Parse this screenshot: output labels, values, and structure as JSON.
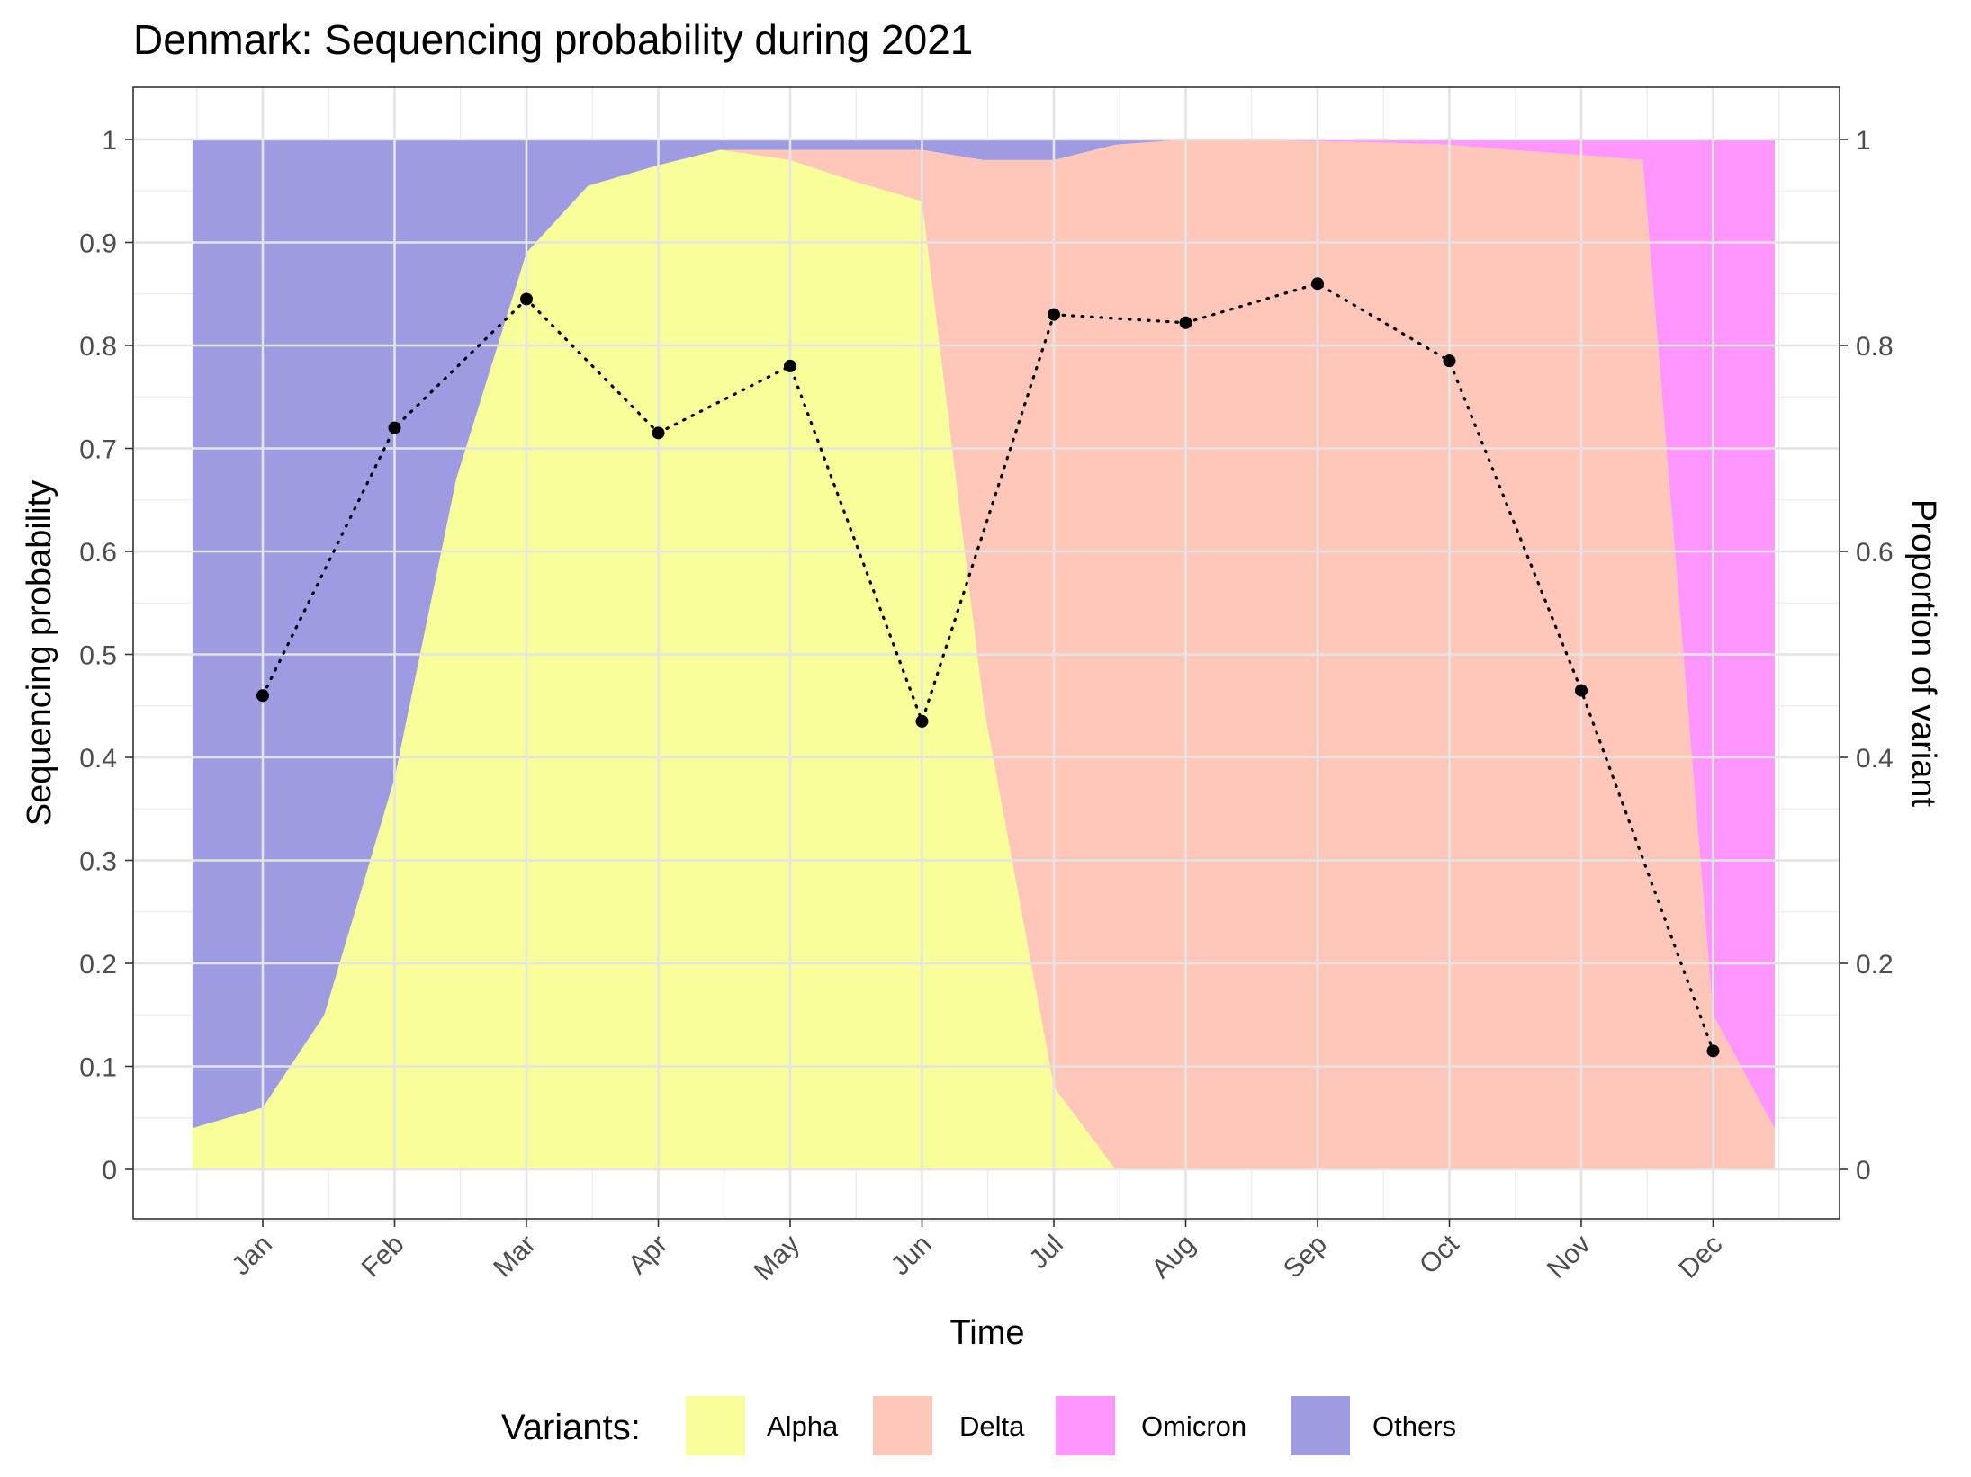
{
  "chart_data": {
    "type": "area",
    "title": "Denmark: Sequencing probability during 2021",
    "xlabel": "Time",
    "ylabel": "Sequencing probability",
    "y2label": "Proportion of variant",
    "x_ticks": [
      "Jan",
      "Feb",
      "Mar",
      "Apr",
      "May",
      "Jun",
      "Jul",
      "Aug",
      "Sep",
      "Oct",
      "Nov",
      "Dec"
    ],
    "y_ticks": [
      "0",
      "0.1",
      "0.2",
      "0.3",
      "0.4",
      "0.5",
      "0.6",
      "0.7",
      "0.8",
      "0.9",
      "1"
    ],
    "y2_ticks": [
      "0",
      "0.2",
      "0.4",
      "0.6",
      "0.8",
      "1"
    ],
    "ylim": [
      -0.05,
      1.05
    ],
    "grid": true,
    "legend_position": "bottom",
    "legend_title": "Variants:",
    "stack_order_bottom_to_top": [
      "Alpha",
      "Delta",
      "Omicron",
      "Others"
    ],
    "variant_months": [
      "2020-12-15",
      "2021-01-01",
      "2021-01-15",
      "2021-02-01",
      "2021-02-15",
      "2021-03-01",
      "2021-03-15",
      "2021-04-01",
      "2021-04-15",
      "2021-05-01",
      "2021-05-15",
      "2021-06-01",
      "2021-06-15",
      "2021-07-01",
      "2021-07-15",
      "2021-08-01",
      "2021-08-15",
      "2021-09-01",
      "2021-09-15",
      "2021-10-01",
      "2021-10-15",
      "2021-11-01",
      "2021-11-15",
      "2021-12-01",
      "2021-12-15"
    ],
    "variants": [
      {
        "name": "Alpha",
        "color": "#F8FF9A",
        "values": [
          0.04,
          0.06,
          0.15,
          0.38,
          0.67,
          0.89,
          0.955,
          0.975,
          0.99,
          0.98,
          0.96,
          0.94,
          0.45,
          0.08,
          0.0,
          0.0,
          0.0,
          0.0,
          0.0,
          0.0,
          0.0,
          0.0,
          0.0,
          0.0,
          0.0
        ]
      },
      {
        "name": "Delta",
        "color": "#FFC6BA",
        "values": [
          0.0,
          0.0,
          0.0,
          0.0,
          0.0,
          0.0,
          0.0,
          0.0,
          0.0,
          0.01,
          0.03,
          0.05,
          0.53,
          0.9,
          0.995,
          1.0,
          1.0,
          0.998,
          0.997,
          0.995,
          0.99,
          0.985,
          0.98,
          0.15,
          0.04
        ]
      },
      {
        "name": "Omicron",
        "color": "#FF96FF",
        "values": [
          0.0,
          0.0,
          0.0,
          0.0,
          0.0,
          0.0,
          0.0,
          0.0,
          0.0,
          0.0,
          0.0,
          0.0,
          0.0,
          0.0,
          0.0,
          0.0,
          0.0,
          0.002,
          0.003,
          0.005,
          0.01,
          0.015,
          0.02,
          0.85,
          0.96
        ]
      },
      {
        "name": "Others",
        "color": "#9D9BE1",
        "values": [
          0.96,
          0.94,
          0.85,
          0.62,
          0.33,
          0.11,
          0.045,
          0.025,
          0.01,
          0.01,
          0.01,
          0.01,
          0.02,
          0.02,
          0.005,
          0.0,
          0.0,
          0.0,
          0.0,
          0.0,
          0.0,
          0.0,
          0.0,
          0.0,
          0.0
        ]
      }
    ],
    "sequencing_points": [
      {
        "x": "Jan",
        "y": 0.46
      },
      {
        "x": "Feb",
        "y": 0.72
      },
      {
        "x": "Mar",
        "y": 0.845
      },
      {
        "x": "Apr",
        "y": 0.715
      },
      {
        "x": "May",
        "y": 0.78
      },
      {
        "x": "Jun",
        "y": 0.435
      },
      {
        "x": "Jul",
        "y": 0.83
      },
      {
        "x": "Aug",
        "y": 0.822
      },
      {
        "x": "Sep",
        "y": 0.86
      },
      {
        "x": "Oct",
        "y": 0.785
      },
      {
        "x": "Nov",
        "y": 0.465
      },
      {
        "x": "Dec",
        "y": 0.115
      }
    ]
  }
}
